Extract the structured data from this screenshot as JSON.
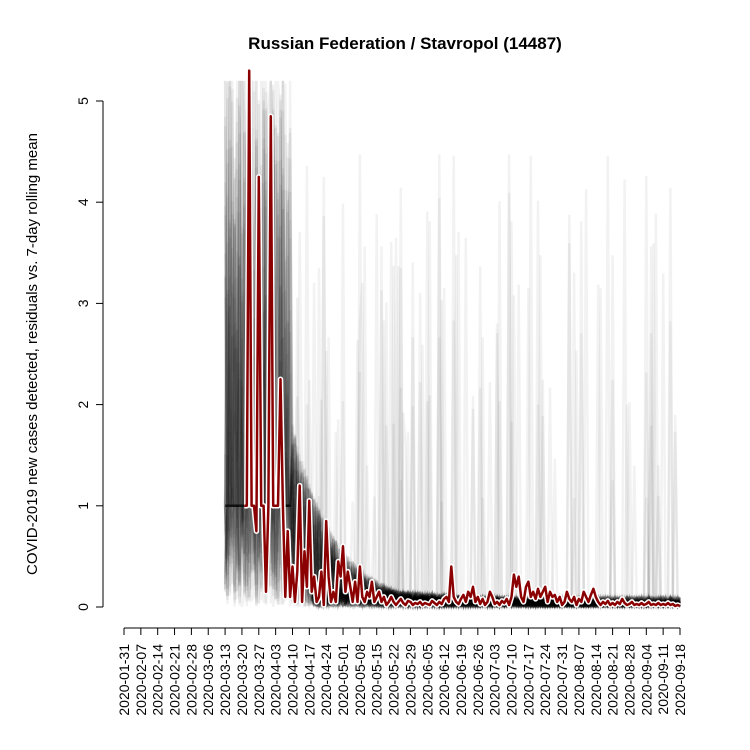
{
  "chart_data": {
    "type": "line",
    "title": "Russian Federation / Stavropol (14487)",
    "xlabel": "",
    "ylabel": "COVID-2019 new cases detected, residuals vs. 7-day rolling mean",
    "x_start": "2020-01-31",
    "x_end": "2020-09-18",
    "ylim": [
      0,
      5
    ],
    "yticks": [
      0,
      1,
      2,
      3,
      4,
      5
    ],
    "xtick_labels": [
      "2020-01-31",
      "2020-02-07",
      "2020-02-14",
      "2020-02-21",
      "2020-02-28",
      "2020-03-06",
      "2020-03-13",
      "2020-03-20",
      "2020-03-27",
      "2020-04-03",
      "2020-04-10",
      "2020-04-17",
      "2020-04-24",
      "2020-05-01",
      "2020-05-08",
      "2020-05-15",
      "2020-05-22",
      "2020-05-29",
      "2020-06-05",
      "2020-06-12",
      "2020-06-19",
      "2020-06-26",
      "2020-07-03",
      "2020-07-10",
      "2020-07-17",
      "2020-07-24",
      "2020-07-31",
      "2020-08-07",
      "2020-08-14",
      "2020-08-21",
      "2020-08-28",
      "2020-09-04",
      "2020-09-11",
      "2020-09-18"
    ],
    "grid": false,
    "legend": "none",
    "background_note": "many semi-transparent grey lines for other regions",
    "series": [
      {
        "name": "",
        "color": "#8b0000",
        "points": [
          [
            "2020-03-21",
            1.0
          ],
          [
            "2020-03-22",
            1.0
          ],
          [
            "2020-03-23",
            6.2
          ],
          [
            "2020-03-24",
            1.0
          ],
          [
            "2020-03-25",
            1.0
          ],
          [
            "2020-03-26",
            0.75
          ],
          [
            "2020-03-27",
            4.25
          ],
          [
            "2020-03-28",
            1.0
          ],
          [
            "2020-03-29",
            1.0
          ],
          [
            "2020-03-30",
            0.15
          ],
          [
            "2020-03-31",
            1.0
          ],
          [
            "2020-04-01",
            4.85
          ],
          [
            "2020-04-02",
            1.0
          ],
          [
            "2020-04-03",
            1.0
          ],
          [
            "2020-04-04",
            1.0
          ],
          [
            "2020-04-05",
            2.25
          ],
          [
            "2020-04-06",
            1.0
          ],
          [
            "2020-04-07",
            0.1
          ],
          [
            "2020-04-08",
            0.75
          ],
          [
            "2020-04-09",
            0.1
          ],
          [
            "2020-04-10",
            0.4
          ],
          [
            "2020-04-11",
            0.05
          ],
          [
            "2020-04-12",
            0.35
          ],
          [
            "2020-04-13",
            1.2
          ],
          [
            "2020-04-14",
            0.05
          ],
          [
            "2020-04-15",
            0.55
          ],
          [
            "2020-04-16",
            0.2
          ],
          [
            "2020-04-17",
            1.05
          ],
          [
            "2020-04-18",
            0.15
          ],
          [
            "2020-04-19",
            0.3
          ],
          [
            "2020-04-20",
            0.05
          ],
          [
            "2020-04-21",
            0.1
          ],
          [
            "2020-04-22",
            0.35
          ],
          [
            "2020-04-23",
            0.02
          ],
          [
            "2020-04-24",
            0.85
          ],
          [
            "2020-04-25",
            0.3
          ],
          [
            "2020-04-26",
            0.05
          ],
          [
            "2020-04-27",
            0.15
          ],
          [
            "2020-04-28",
            0.05
          ],
          [
            "2020-04-29",
            0.45
          ],
          [
            "2020-04-30",
            0.3
          ],
          [
            "2020-05-01",
            0.6
          ],
          [
            "2020-05-02",
            0.15
          ],
          [
            "2020-05-03",
            0.35
          ],
          [
            "2020-05-04",
            0.2
          ],
          [
            "2020-05-05",
            0.05
          ],
          [
            "2020-05-06",
            0.25
          ],
          [
            "2020-05-07",
            0.05
          ],
          [
            "2020-05-08",
            0.4
          ],
          [
            "2020-05-09",
            0.1
          ],
          [
            "2020-05-10",
            0.05
          ],
          [
            "2020-05-11",
            0.15
          ],
          [
            "2020-05-12",
            0.1
          ],
          [
            "2020-05-13",
            0.25
          ],
          [
            "2020-05-14",
            0.05
          ],
          [
            "2020-05-15",
            0.1
          ],
          [
            "2020-05-16",
            0.15
          ],
          [
            "2020-05-17",
            0.05
          ],
          [
            "2020-05-18",
            0.1
          ],
          [
            "2020-05-19",
            0.02
          ],
          [
            "2020-05-20",
            0.05
          ],
          [
            "2020-05-21",
            0.1
          ],
          [
            "2020-05-22",
            0.05
          ],
          [
            "2020-05-23",
            0.02
          ],
          [
            "2020-05-24",
            0.05
          ],
          [
            "2020-05-25",
            0.08
          ],
          [
            "2020-05-26",
            0.04
          ],
          [
            "2020-05-27",
            0.02
          ],
          [
            "2020-05-28",
            0.06
          ],
          [
            "2020-05-29",
            0.05
          ],
          [
            "2020-05-30",
            0.02
          ],
          [
            "2020-05-31",
            0.04
          ],
          [
            "2020-06-01",
            0.03
          ],
          [
            "2020-06-02",
            0.05
          ],
          [
            "2020-06-03",
            0.02
          ],
          [
            "2020-06-04",
            0.04
          ],
          [
            "2020-06-05",
            0.03
          ],
          [
            "2020-06-06",
            0.02
          ],
          [
            "2020-06-07",
            0.06
          ],
          [
            "2020-06-08",
            0.04
          ],
          [
            "2020-06-09",
            0.02
          ],
          [
            "2020-06-10",
            0.05
          ],
          [
            "2020-06-11",
            0.03
          ],
          [
            "2020-06-12",
            0.08
          ],
          [
            "2020-06-13",
            0.1
          ],
          [
            "2020-06-14",
            0.05
          ],
          [
            "2020-06-15",
            0.4
          ],
          [
            "2020-06-16",
            0.1
          ],
          [
            "2020-06-17",
            0.05
          ],
          [
            "2020-06-18",
            0.03
          ],
          [
            "2020-06-19",
            0.08
          ],
          [
            "2020-06-20",
            0.12
          ],
          [
            "2020-06-21",
            0.05
          ],
          [
            "2020-06-22",
            0.15
          ],
          [
            "2020-06-23",
            0.1
          ],
          [
            "2020-06-24",
            0.2
          ],
          [
            "2020-06-25",
            0.05
          ],
          [
            "2020-06-26",
            0.1
          ],
          [
            "2020-06-27",
            0.03
          ],
          [
            "2020-06-28",
            0.08
          ],
          [
            "2020-06-29",
            0.02
          ],
          [
            "2020-06-30",
            0.05
          ],
          [
            "2020-07-01",
            0.15
          ],
          [
            "2020-07-02",
            0.1
          ],
          [
            "2020-07-03",
            0.03
          ],
          [
            "2020-07-04",
            0.05
          ],
          [
            "2020-07-05",
            0.02
          ],
          [
            "2020-07-06",
            0.06
          ],
          [
            "2020-07-07",
            0.04
          ],
          [
            "2020-07-08",
            0.08
          ],
          [
            "2020-07-09",
            0.02
          ],
          [
            "2020-07-10",
            0.1
          ],
          [
            "2020-07-11",
            0.32
          ],
          [
            "2020-07-12",
            0.2
          ],
          [
            "2020-07-13",
            0.3
          ],
          [
            "2020-07-14",
            0.1
          ],
          [
            "2020-07-15",
            0.05
          ],
          [
            "2020-07-16",
            0.2
          ],
          [
            "2020-07-17",
            0.25
          ],
          [
            "2020-07-18",
            0.1
          ],
          [
            "2020-07-19",
            0.15
          ],
          [
            "2020-07-20",
            0.08
          ],
          [
            "2020-07-21",
            0.18
          ],
          [
            "2020-07-22",
            0.1
          ],
          [
            "2020-07-23",
            0.15
          ],
          [
            "2020-07-24",
            0.2
          ],
          [
            "2020-07-25",
            0.05
          ],
          [
            "2020-07-26",
            0.15
          ],
          [
            "2020-07-27",
            0.1
          ],
          [
            "2020-07-28",
            0.12
          ],
          [
            "2020-07-29",
            0.05
          ],
          [
            "2020-07-30",
            0.1
          ],
          [
            "2020-07-31",
            0.02
          ],
          [
            "2020-08-01",
            0.05
          ],
          [
            "2020-08-02",
            0.15
          ],
          [
            "2020-08-03",
            0.08
          ],
          [
            "2020-08-04",
            0.05
          ],
          [
            "2020-08-05",
            0.1
          ],
          [
            "2020-08-06",
            0.02
          ],
          [
            "2020-08-07",
            0.08
          ],
          [
            "2020-08-08",
            0.05
          ],
          [
            "2020-08-09",
            0.15
          ],
          [
            "2020-08-10",
            0.1
          ],
          [
            "2020-08-11",
            0.05
          ],
          [
            "2020-08-12",
            0.12
          ],
          [
            "2020-08-13",
            0.18
          ],
          [
            "2020-08-14",
            0.1
          ],
          [
            "2020-08-15",
            0.05
          ],
          [
            "2020-08-16",
            0.02
          ],
          [
            "2020-08-17",
            0.05
          ],
          [
            "2020-08-18",
            0.03
          ],
          [
            "2020-08-19",
            0.06
          ],
          [
            "2020-08-20",
            0.02
          ],
          [
            "2020-08-21",
            0.04
          ],
          [
            "2020-08-22",
            0.02
          ],
          [
            "2020-08-23",
            0.05
          ],
          [
            "2020-08-24",
            0.03
          ],
          [
            "2020-08-25",
            0.08
          ],
          [
            "2020-08-26",
            0.04
          ],
          [
            "2020-08-27",
            0.02
          ],
          [
            "2020-08-28",
            0.03
          ],
          [
            "2020-08-29",
            0.05
          ],
          [
            "2020-08-30",
            0.02
          ],
          [
            "2020-08-31",
            0.03
          ],
          [
            "2020-09-01",
            0.02
          ],
          [
            "2020-09-02",
            0.04
          ],
          [
            "2020-09-03",
            0.02
          ],
          [
            "2020-09-04",
            0.03
          ],
          [
            "2020-09-05",
            0.05
          ],
          [
            "2020-09-06",
            0.02
          ],
          [
            "2020-09-07",
            0.03
          ],
          [
            "2020-09-08",
            0.02
          ],
          [
            "2020-09-09",
            0.04
          ],
          [
            "2020-09-10",
            0.02
          ],
          [
            "2020-09-11",
            0.03
          ],
          [
            "2020-09-12",
            0.02
          ],
          [
            "2020-09-13",
            0.04
          ],
          [
            "2020-09-14",
            0.02
          ],
          [
            "2020-09-15",
            0.03
          ],
          [
            "2020-09-16",
            0.01
          ],
          [
            "2020-09-17",
            0.02
          ],
          [
            "2020-09-18",
            0.01
          ]
        ]
      }
    ]
  }
}
